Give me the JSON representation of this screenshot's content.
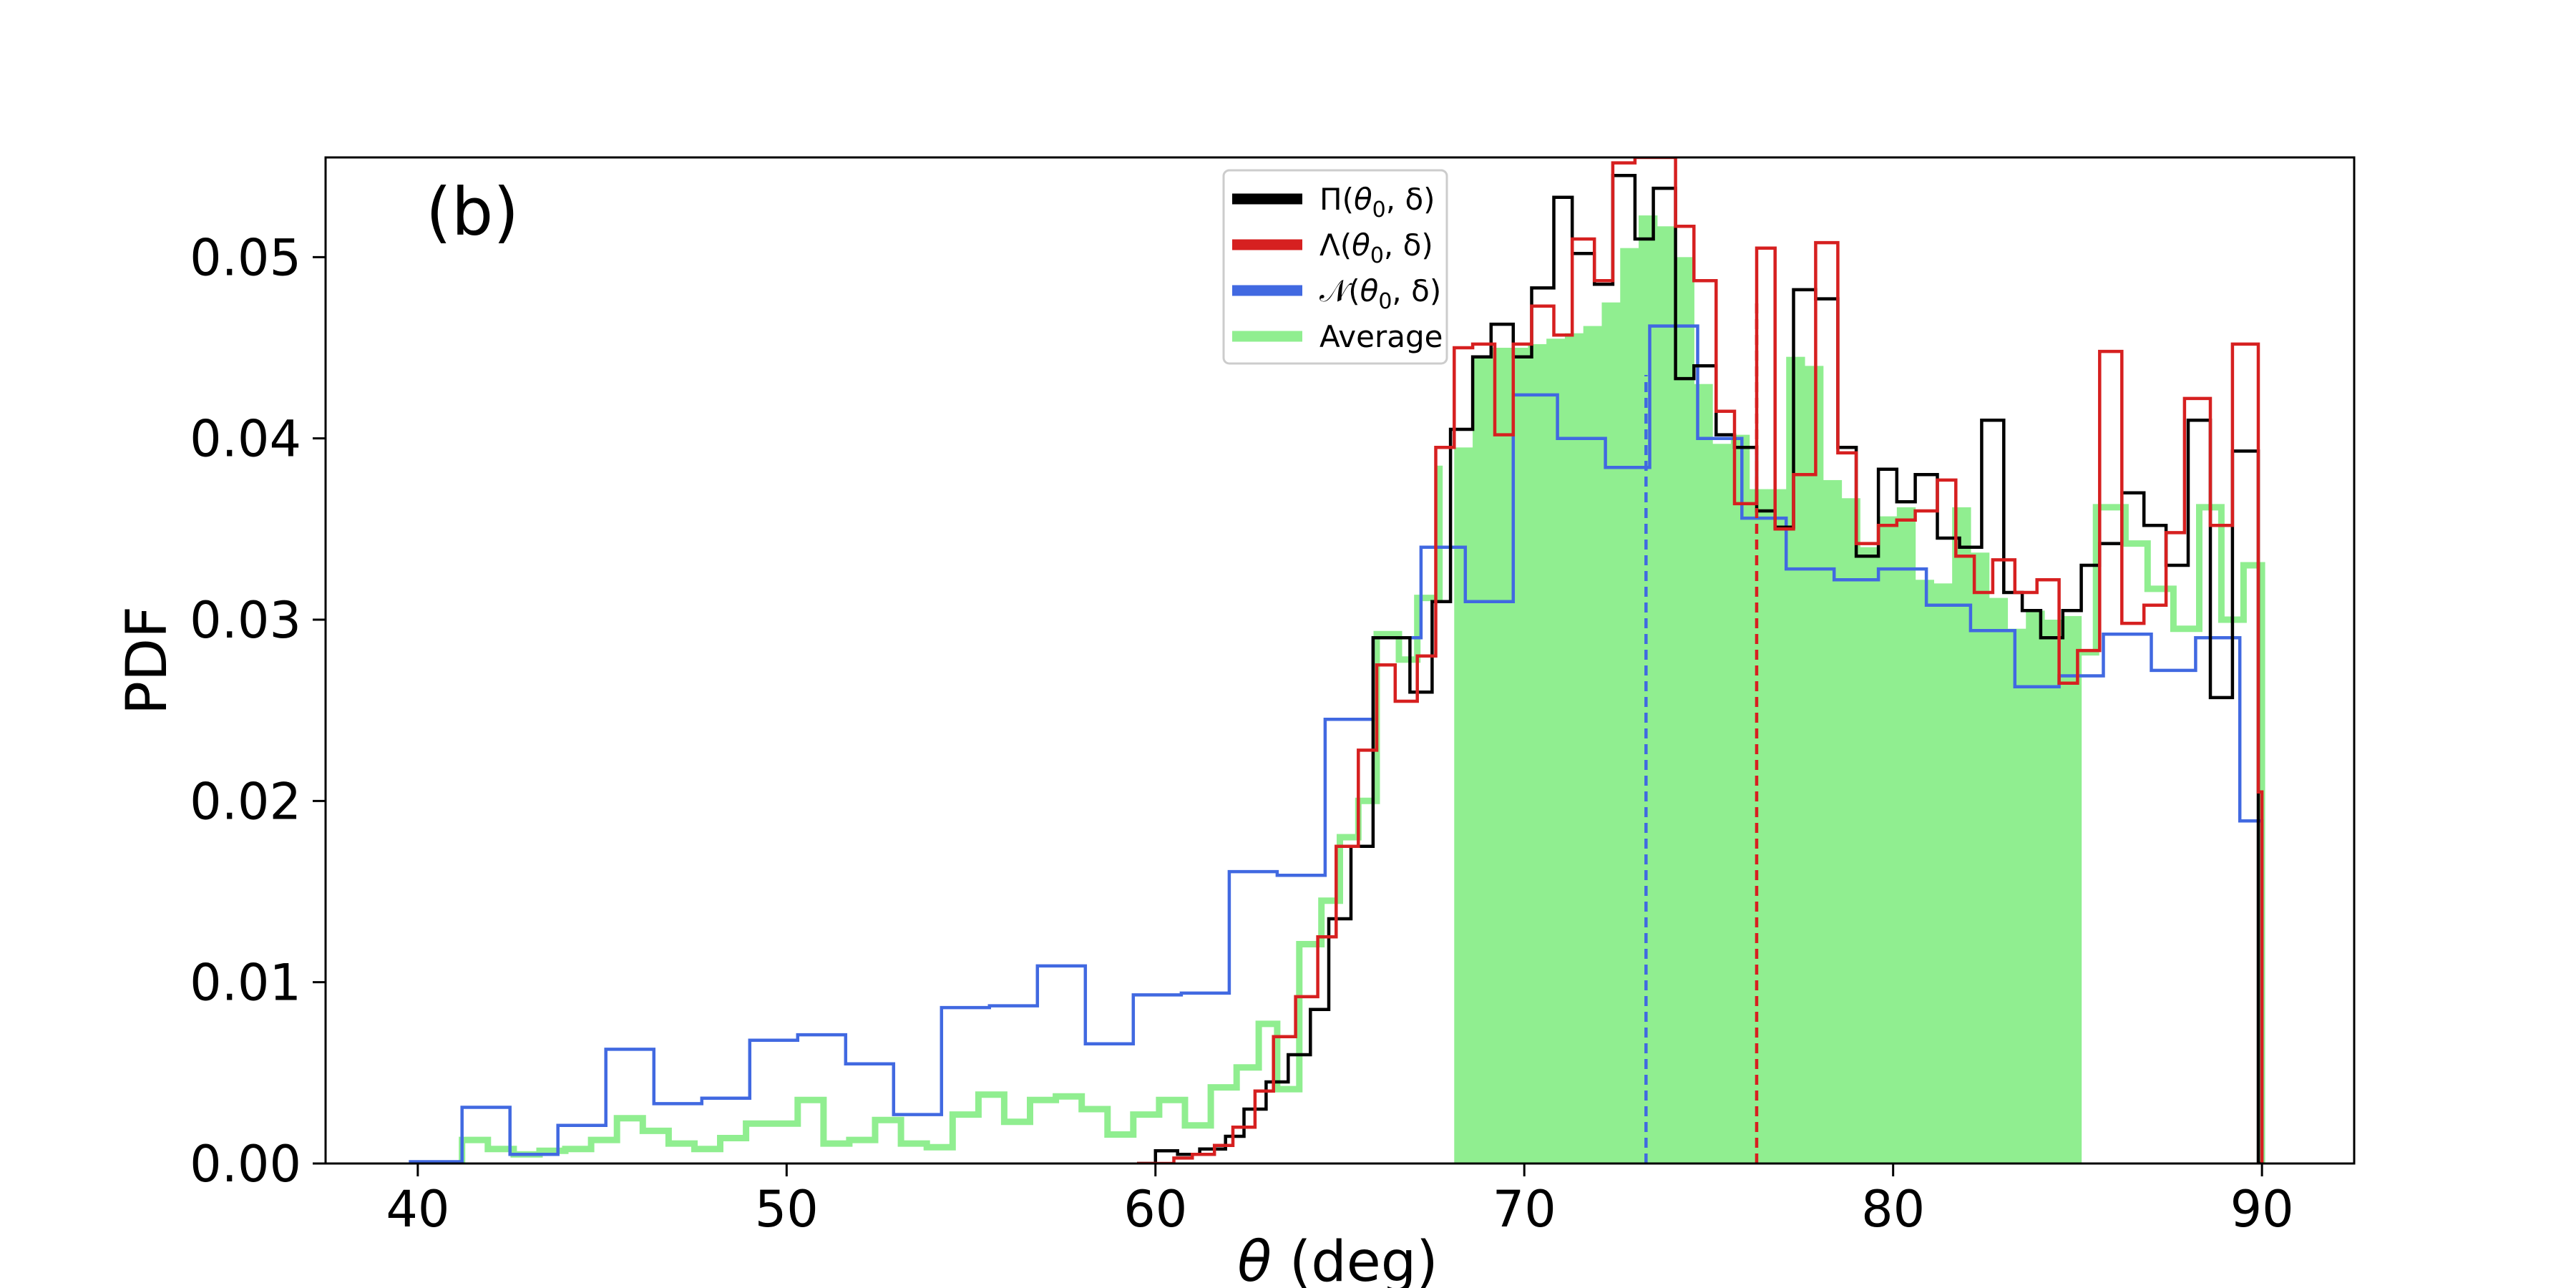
{
  "chart_data": {
    "type": "histogram",
    "panel_label": "(b)",
    "xlabel": "θ (deg)",
    "ylabel": "PDF",
    "xlim": [
      37.5,
      92.5
    ],
    "ylim": [
      0,
      0.0555
    ],
    "xticks": [
      40,
      50,
      60,
      70,
      80,
      90
    ],
    "yticks": [
      0.0,
      0.01,
      0.02,
      0.03,
      0.04,
      0.05
    ],
    "ytick_labels": [
      "0.00",
      "0.01",
      "0.02",
      "0.03",
      "0.04",
      "0.05"
    ],
    "legend_position": "upper-center",
    "colors": {
      "Pi": "#000000",
      "Lambda": "#d62020",
      "N": "#4169e1",
      "Average": "#90ee90",
      "shade": "#90ee90"
    },
    "series": [
      {
        "key": "Pi",
        "name": "Π(θ0, δ)",
        "name_main": "Π(",
        "name_sym": "θ",
        "name_sub": "0",
        "name_tail": ", δ)",
        "points": [
          [
            59.5,
            0
          ],
          [
            60.0,
            0.0007
          ],
          [
            60.6,
            0.0005
          ],
          [
            61.2,
            0.0008
          ],
          [
            61.9,
            0.0015
          ],
          [
            62.4,
            0.003
          ],
          [
            63.0,
            0.0045
          ],
          [
            63.6,
            0.006
          ],
          [
            64.2,
            0.0085
          ],
          [
            64.7,
            0.0135
          ],
          [
            65.3,
            0.0175
          ],
          [
            65.9,
            0.029
          ],
          [
            66.4,
            0.029
          ],
          [
            66.9,
            0.026
          ],
          [
            67.5,
            0.031
          ],
          [
            68.0,
            0.0405
          ],
          [
            68.6,
            0.0445
          ],
          [
            69.1,
            0.0463
          ],
          [
            69.7,
            0.0445
          ],
          [
            70.2,
            0.0483
          ],
          [
            70.8,
            0.0533
          ],
          [
            71.3,
            0.0502
          ],
          [
            71.9,
            0.0485
          ],
          [
            72.4,
            0.0545
          ],
          [
            73.0,
            0.051
          ],
          [
            73.5,
            0.0538
          ],
          [
            74.1,
            0.0433
          ],
          [
            74.6,
            0.044
          ],
          [
            75.2,
            0.0402
          ],
          [
            75.7,
            0.0395
          ],
          [
            76.3,
            0.036
          ],
          [
            76.8,
            0.0351
          ],
          [
            77.3,
            0.0482
          ],
          [
            77.9,
            0.0477
          ],
          [
            78.5,
            0.0395
          ],
          [
            79.0,
            0.0335
          ],
          [
            79.6,
            0.0383
          ],
          [
            80.1,
            0.0365
          ],
          [
            80.6,
            0.038
          ],
          [
            81.2,
            0.0345
          ],
          [
            81.8,
            0.034
          ],
          [
            82.4,
            0.041
          ],
          [
            83.0,
            0.0315
          ],
          [
            83.5,
            0.0305
          ],
          [
            84.0,
            0.029
          ],
          [
            84.6,
            0.0305
          ],
          [
            85.1,
            0.033
          ],
          [
            85.6,
            0.0342
          ],
          [
            86.2,
            0.037
          ],
          [
            86.8,
            0.0352
          ],
          [
            87.4,
            0.033
          ],
          [
            88.0,
            0.041
          ],
          [
            88.6,
            0.0257
          ],
          [
            89.2,
            0.0393
          ],
          [
            89.9,
            0
          ],
          [
            90.0,
            0
          ]
        ]
      },
      {
        "key": "Lambda",
        "name": "Λ(θ0, δ)",
        "name_main": "Λ(",
        "name_sym": "θ",
        "name_sub": "0",
        "name_tail": ", δ)",
        "points": [
          [
            59.5,
            0
          ],
          [
            60.5,
            0.0003
          ],
          [
            61.0,
            0.0005
          ],
          [
            61.6,
            0.001
          ],
          [
            62.1,
            0.002
          ],
          [
            62.7,
            0.004
          ],
          [
            63.2,
            0.007
          ],
          [
            63.8,
            0.0092
          ],
          [
            64.4,
            0.0125
          ],
          [
            64.9,
            0.0175
          ],
          [
            65.5,
            0.0228
          ],
          [
            66.0,
            0.0275
          ],
          [
            66.5,
            0.0255
          ],
          [
            67.1,
            0.028
          ],
          [
            67.6,
            0.0395
          ],
          [
            68.1,
            0.045
          ],
          [
            68.6,
            0.0452
          ],
          [
            69.2,
            0.0402
          ],
          [
            69.7,
            0.0452
          ],
          [
            70.2,
            0.0473
          ],
          [
            70.8,
            0.0457
          ],
          [
            71.3,
            0.051
          ],
          [
            71.9,
            0.0487
          ],
          [
            72.4,
            0.0552
          ],
          [
            73.0,
            0.0555
          ],
          [
            73.5,
            0.0555
          ],
          [
            74.1,
            0.0517
          ],
          [
            74.6,
            0.0487
          ],
          [
            75.2,
            0.0415
          ],
          [
            75.7,
            0.0364
          ],
          [
            76.3,
            0.0505
          ],
          [
            76.8,
            0.035
          ],
          [
            77.3,
            0.038
          ],
          [
            77.9,
            0.0508
          ],
          [
            78.5,
            0.0392
          ],
          [
            79.0,
            0.0342
          ],
          [
            79.6,
            0.0352
          ],
          [
            80.1,
            0.0355
          ],
          [
            80.6,
            0.036
          ],
          [
            81.2,
            0.0377
          ],
          [
            81.7,
            0.0335
          ],
          [
            82.2,
            0.0315
          ],
          [
            82.7,
            0.0333
          ],
          [
            83.3,
            0.0315
          ],
          [
            83.9,
            0.0322
          ],
          [
            84.5,
            0.0265
          ],
          [
            85.0,
            0.0283
          ],
          [
            85.6,
            0.0448
          ],
          [
            86.2,
            0.0298
          ],
          [
            86.8,
            0.0308
          ],
          [
            87.4,
            0.0348
          ],
          [
            87.9,
            0.0422
          ],
          [
            88.6,
            0.0352
          ],
          [
            89.2,
            0.0452
          ],
          [
            89.9,
            0.0205
          ],
          [
            90.0,
            0
          ]
        ]
      },
      {
        "key": "N",
        "name": "𝒩(θ0, δ)",
        "name_main": "𝒩(",
        "name_sym": "θ",
        "name_sub": "0",
        "name_tail": ", δ)",
        "points": [
          [
            39.8,
            0.0001
          ],
          [
            41.2,
            0.0031
          ],
          [
            42.5,
            0.0005
          ],
          [
            43.8,
            0.0021
          ],
          [
            45.1,
            0.0063
          ],
          [
            46.4,
            0.0033
          ],
          [
            47.7,
            0.0036
          ],
          [
            49.0,
            0.0068
          ],
          [
            50.3,
            0.0071
          ],
          [
            51.6,
            0.0055
          ],
          [
            52.9,
            0.0027
          ],
          [
            54.2,
            0.0086
          ],
          [
            55.5,
            0.0087
          ],
          [
            56.8,
            0.0109
          ],
          [
            58.1,
            0.0066
          ],
          [
            59.4,
            0.0093
          ],
          [
            60.7,
            0.0094
          ],
          [
            62.0,
            0.0161
          ],
          [
            63.3,
            0.0159
          ],
          [
            64.6,
            0.0245
          ],
          [
            65.9,
            0.029
          ],
          [
            67.2,
            0.034
          ],
          [
            68.4,
            0.031
          ],
          [
            69.7,
            0.0424
          ],
          [
            70.9,
            0.04
          ],
          [
            72.2,
            0.0384
          ],
          [
            73.4,
            0.0462
          ],
          [
            74.7,
            0.04
          ],
          [
            75.9,
            0.0356
          ],
          [
            77.1,
            0.0328
          ],
          [
            78.4,
            0.0322
          ],
          [
            79.6,
            0.0328
          ],
          [
            80.9,
            0.0308
          ],
          [
            82.1,
            0.0294
          ],
          [
            83.3,
            0.0263
          ],
          [
            84.5,
            0.0269
          ],
          [
            85.7,
            0.0292
          ],
          [
            87.0,
            0.0272
          ],
          [
            88.2,
            0.029
          ],
          [
            89.4,
            0.0189
          ],
          [
            90.0,
            0
          ]
        ]
      },
      {
        "key": "Average",
        "name": "Average",
        "points": [
          [
            41.2,
            0.0013
          ],
          [
            41.9,
            0.0008
          ],
          [
            42.6,
            0.0005
          ],
          [
            43.3,
            0.0007
          ],
          [
            44.0,
            0.0008
          ],
          [
            44.7,
            0.0013
          ],
          [
            45.4,
            0.0025
          ],
          [
            46.1,
            0.0018
          ],
          [
            46.8,
            0.0011
          ],
          [
            47.5,
            0.0008
          ],
          [
            48.2,
            0.0014
          ],
          [
            48.9,
            0.0022
          ],
          [
            49.6,
            0.0022
          ],
          [
            50.3,
            0.0035
          ],
          [
            51.0,
            0.0011
          ],
          [
            51.7,
            0.0013
          ],
          [
            52.4,
            0.0024
          ],
          [
            53.1,
            0.0011
          ],
          [
            53.8,
            0.0009
          ],
          [
            54.5,
            0.0027
          ],
          [
            55.2,
            0.0038
          ],
          [
            55.9,
            0.0023
          ],
          [
            56.6,
            0.0035
          ],
          [
            57.3,
            0.0037
          ],
          [
            58.0,
            0.003
          ],
          [
            58.7,
            0.0016
          ],
          [
            59.4,
            0.0027
          ],
          [
            60.1,
            0.0035
          ],
          [
            60.8,
            0.0021
          ],
          [
            61.5,
            0.0042
          ],
          [
            62.2,
            0.0053
          ],
          [
            62.8,
            0.0077
          ],
          [
            63.3,
            0.0041
          ],
          [
            63.9,
            0.0121
          ],
          [
            64.5,
            0.0145
          ],
          [
            65.0,
            0.018
          ],
          [
            65.5,
            0.02
          ],
          [
            66.0,
            0.0292
          ],
          [
            66.6,
            0.0278
          ],
          [
            67.1,
            0.0312
          ],
          [
            67.7,
            0.0385
          ]
        ]
      },
      {
        "key": "AverageTail",
        "name": "",
        "points": [
          [
            84.6,
            0.0282
          ],
          [
            85.5,
            0.0362
          ],
          [
            86.3,
            0.0342
          ],
          [
            86.9,
            0.0317
          ],
          [
            87.6,
            0.0295
          ],
          [
            88.3,
            0.0362
          ],
          [
            88.9,
            0.03
          ],
          [
            89.5,
            0.033
          ],
          [
            90.0,
            0
          ]
        ]
      }
    ],
    "shaded_average_bins": [
      [
        68.1,
        0.0395
      ],
      [
        68.6,
        0.0445
      ],
      [
        69.1,
        0.045
      ],
      [
        69.6,
        0.045
      ],
      [
        70.1,
        0.0452
      ],
      [
        70.6,
        0.0455
      ],
      [
        71.1,
        0.0458
      ],
      [
        71.6,
        0.0462
      ],
      [
        72.1,
        0.0475
      ],
      [
        72.6,
        0.0505
      ],
      [
        73.1,
        0.0523
      ],
      [
        73.6,
        0.0517
      ],
      [
        74.1,
        0.05
      ],
      [
        74.6,
        0.043
      ],
      [
        75.1,
        0.0397
      ],
      [
        75.6,
        0.0402
      ],
      [
        76.1,
        0.0372
      ],
      [
        76.6,
        0.0372
      ],
      [
        77.1,
        0.0445
      ],
      [
        77.6,
        0.044
      ],
      [
        78.1,
        0.0377
      ],
      [
        78.6,
        0.0367
      ],
      [
        79.1,
        0.034
      ],
      [
        79.6,
        0.0357
      ],
      [
        80.1,
        0.0362
      ],
      [
        80.6,
        0.0322
      ],
      [
        81.1,
        0.032
      ],
      [
        81.6,
        0.0362
      ],
      [
        82.1,
        0.0337
      ],
      [
        82.6,
        0.0312
      ],
      [
        83.1,
        0.0295
      ],
      [
        83.6,
        0.0305
      ],
      [
        84.1,
        0.03
      ],
      [
        84.6,
        0.0302
      ]
    ],
    "shaded_end": 85.1,
    "vlines": [
      {
        "x": 73.3,
        "y": 0.0435,
        "color": "#4169e1"
      },
      {
        "x": 76.3,
        "y": 0.0475,
        "color": "#d62020"
      }
    ]
  }
}
